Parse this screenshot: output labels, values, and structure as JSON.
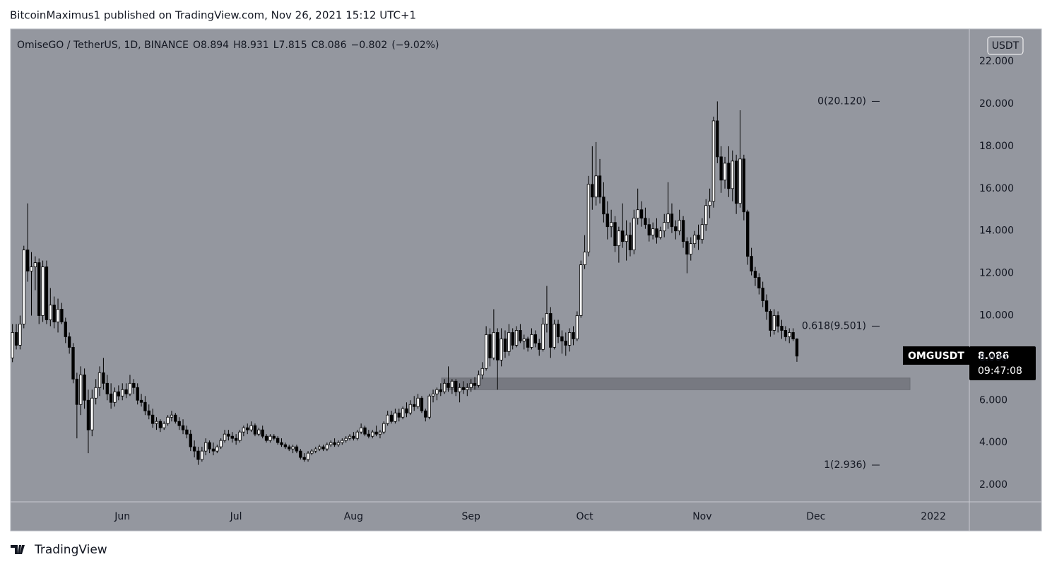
{
  "header": "BitcoinMaximus1 published on TradingView.com, Nov 26, 2021 15:12 UTC+1",
  "footer_brand": "TradingView",
  "chart_data": {
    "type": "candlestick",
    "symbol": "OmiseGO / TetherUS, 1D, BINANCE",
    "quote": [
      {
        "key": "O",
        "value": 8.894
      },
      {
        "key": "H",
        "value": 8.931
      },
      {
        "key": "L",
        "value": 7.815
      },
      {
        "key": "C",
        "value": 8.086
      }
    ],
    "change": {
      "value": -0.802,
      "label": "−0.802"
    },
    "change_pct": {
      "value": -9.02,
      "label": "(−9.02%)"
    },
    "ticker": "OMGUSDT",
    "countdown": "09:47:08",
    "currency": "USDT",
    "up_color": "#ffffff",
    "down_color": "#000000",
    "grid": false,
    "ylim": [
      1.2,
      23.54
    ],
    "yticks": [
      {
        "value": 2,
        "label": "2.000"
      },
      {
        "value": 4,
        "label": "4.000"
      },
      {
        "value": 6,
        "label": "6.000"
      },
      {
        "value": 8,
        "label": "8.000"
      },
      {
        "value": 10,
        "label": "10.000"
      },
      {
        "value": 12,
        "label": "12.000"
      },
      {
        "value": 14,
        "label": "14.000"
      },
      {
        "value": 16,
        "label": "16.000"
      },
      {
        "value": 18,
        "label": "18.000"
      },
      {
        "value": 20,
        "label": "20.000"
      },
      {
        "value": 22,
        "label": "22.000"
      }
    ],
    "fib_levels": [
      {
        "value": 20.12,
        "label": "0(20.120)"
      },
      {
        "value": 9.501,
        "label": "0.618(9.501)"
      },
      {
        "value": 2.936,
        "label": "1(2.936)"
      }
    ],
    "zone": [
      6.5,
      7.05
    ],
    "categories": [
      null,
      null,
      null,
      null,
      null,
      null,
      null,
      null,
      null,
      null,
      null,
      null,
      null,
      null,
      null,
      null,
      null,
      null,
      null,
      null,
      null,
      null,
      null,
      null,
      null,
      null,
      null,
      null,
      null,
      "Jun",
      null,
      null,
      null,
      null,
      null,
      null,
      null,
      null,
      null,
      null,
      null,
      null,
      null,
      null,
      null,
      null,
      null,
      null,
      null,
      null,
      null,
      null,
      null,
      null,
      null,
      null,
      null,
      null,
      null,
      "Jul",
      null,
      null,
      null,
      null,
      null,
      null,
      null,
      null,
      null,
      null,
      null,
      null,
      null,
      null,
      null,
      null,
      null,
      null,
      null,
      null,
      null,
      null,
      null,
      null,
      null,
      null,
      null,
      null,
      null,
      null,
      "Aug",
      null,
      null,
      null,
      null,
      null,
      null,
      null,
      null,
      null,
      null,
      null,
      null,
      null,
      null,
      null,
      null,
      null,
      null,
      null,
      null,
      null,
      null,
      null,
      null,
      null,
      null,
      null,
      null,
      null,
      null,
      "Sep",
      null,
      null,
      null,
      null,
      null,
      null,
      null,
      null,
      null,
      null,
      null,
      null,
      null,
      null,
      null,
      null,
      null,
      null,
      null,
      null,
      null,
      null,
      null,
      null,
      null,
      null,
      null,
      null,
      null,
      "Oct",
      null,
      null,
      null,
      null,
      null,
      null,
      null,
      null,
      null,
      null,
      null,
      null,
      null,
      null,
      null,
      null,
      null,
      null,
      null,
      null,
      null,
      null,
      null,
      null,
      null,
      null,
      null,
      null,
      null,
      null,
      "Nov",
      null,
      null,
      null,
      null,
      null,
      null,
      null,
      null,
      null,
      null,
      null,
      null,
      null,
      null,
      null,
      null,
      null,
      null,
      null,
      null,
      null,
      null,
      null,
      null,
      null,
      null,
      null,
      null,
      null,
      "Dec",
      null,
      null,
      null,
      null,
      null,
      null,
      null,
      null,
      null,
      null,
      null,
      null,
      null,
      null,
      null,
      null,
      null,
      null,
      null,
      null,
      null,
      null,
      null,
      null,
      null,
      null,
      null,
      null,
      null,
      null,
      "2022",
      null,
      null,
      null,
      null,
      null,
      null,
      null,
      null,
      null
    ],
    "open": [
      8.0,
      9.2,
      8.6,
      9.6,
      13.1,
      12.1,
      12.3,
      12.5,
      10.0,
      12.3,
      9.8,
      10.5,
      9.7,
      10.3,
      9.7,
      9.0,
      8.5,
      7.0,
      5.8,
      7.2,
      6.0,
      4.6,
      6.1,
      6.6,
      7.3,
      6.8,
      6.3,
      5.9,
      6.4,
      6.2,
      6.5,
      6.3,
      6.8,
      6.6,
      6.0,
      5.9,
      5.5,
      5.3,
      4.9,
      5.0,
      4.7,
      4.9,
      5.2,
      5.3,
      5.0,
      4.8,
      4.6,
      4.4,
      3.8,
      3.6,
      3.2,
      3.6,
      4.0,
      3.7,
      3.6,
      3.8,
      4.1,
      4.4,
      4.3,
      4.2,
      4.1,
      4.5,
      4.7,
      4.6,
      4.8,
      4.4,
      4.6,
      4.3,
      4.1,
      4.3,
      4.2,
      4.0,
      3.9,
      3.8,
      3.7,
      3.8,
      3.6,
      3.3,
      3.2,
      3.5,
      3.6,
      3.7,
      3.8,
      3.7,
      3.9,
      4.0,
      3.9,
      4.0,
      4.1,
      4.2,
      4.3,
      4.2,
      4.5,
      4.7,
      4.4,
      4.3,
      4.5,
      4.4,
      4.5,
      4.9,
      5.3,
      5.0,
      5.4,
      5.2,
      5.6,
      5.4,
      5.8,
      5.7,
      6.1,
      5.5,
      5.2,
      6.2,
      6.3,
      6.5,
      6.4,
      6.8,
      6.6,
      6.9,
      6.4,
      6.6,
      6.5,
      6.6,
      6.8,
      6.7,
      7.2,
      7.5,
      9.1,
      8.0,
      9.2,
      7.9,
      8.9,
      8.3,
      9.2,
      8.6,
      9.3,
      8.8,
      8.9,
      8.5,
      9.1,
      8.7,
      8.4,
      9.6,
      10.1,
      8.5,
      9.6,
      9.0,
      8.8,
      8.6,
      9.2,
      8.9,
      10.0,
      12.4,
      13.0,
      16.2,
      15.6,
      16.6,
      15.6,
      14.8,
      14.2,
      14.4,
      13.3,
      14.0,
      13.5,
      13.8,
      13.1,
      14.6,
      15.0,
      14.6,
      14.3,
      13.8,
      14.1,
      13.7,
      14.0,
      14.4,
      14.8,
      14.2,
      14.0,
      14.5,
      13.5,
      12.9,
      13.4,
      13.8,
      13.6,
      14.3,
      15.2,
      15.4,
      19.2,
      17.5,
      16.4,
      17.2,
      16.0,
      17.3,
      15.3,
      17.4,
      14.9,
      12.8,
      12.1,
      11.8,
      11.3,
      10.7,
      10.2,
      9.3,
      10.0,
      9.5,
      9.3,
      9.0,
      9.2,
      8.894,
      null,
      null,
      null,
      null,
      null,
      null,
      null,
      null,
      null,
      null,
      null,
      null,
      null,
      null,
      null,
      null,
      null,
      null,
      null,
      null,
      null,
      null,
      null,
      null,
      null,
      null,
      null,
      null,
      null,
      null,
      null,
      null,
      null,
      null,
      null,
      null,
      null,
      null,
      null,
      null,
      null,
      null,
      null,
      null,
      null
    ],
    "high": [
      9.6,
      9.6,
      10.0,
      13.3,
      15.3,
      13.0,
      12.8,
      12.7,
      12.6,
      12.6,
      11.3,
      10.9,
      10.8,
      10.6,
      9.9,
      9.2,
      8.7,
      7.3,
      7.6,
      7.5,
      6.5,
      6.5,
      7.0,
      7.6,
      8.0,
      7.2,
      6.8,
      6.6,
      6.7,
      6.8,
      6.8,
      7.2,
      7.0,
      6.8,
      6.3,
      6.2,
      5.8,
      5.6,
      5.2,
      5.1,
      5.0,
      5.3,
      5.5,
      5.4,
      5.2,
      5.1,
      4.8,
      4.6,
      4.1,
      3.8,
      3.8,
      4.2,
      4.1,
      4.0,
      3.9,
      4.2,
      4.6,
      4.6,
      4.5,
      4.4,
      4.6,
      4.8,
      4.9,
      5.0,
      4.9,
      4.7,
      4.8,
      4.4,
      4.4,
      4.4,
      4.3,
      4.2,
      4.0,
      3.9,
      3.9,
      3.9,
      3.7,
      3.5,
      3.6,
      3.7,
      3.8,
      3.9,
      3.9,
      4.0,
      4.1,
      4.2,
      4.1,
      4.2,
      4.3,
      4.4,
      4.5,
      4.6,
      4.9,
      4.8,
      4.6,
      4.6,
      4.8,
      4.6,
      5.0,
      5.5,
      5.5,
      5.6,
      5.6,
      5.7,
      5.9,
      6.0,
      6.2,
      6.3,
      6.2,
      5.6,
      6.3,
      6.5,
      6.6,
      6.8,
      7.0,
      7.6,
      7.0,
      7.0,
      6.8,
      6.9,
      6.8,
      7.0,
      7.1,
      7.4,
      7.8,
      9.5,
      9.4,
      10.3,
      9.4,
      9.4,
      9.3,
      9.6,
      9.4,
      9.5,
      9.6,
      9.1,
      9.0,
      9.4,
      9.3,
      8.9,
      9.9,
      11.4,
      10.4,
      9.8,
      9.8,
      9.3,
      9.2,
      9.4,
      9.5,
      10.2,
      12.6,
      13.8,
      16.6,
      18.0,
      18.2,
      17.4,
      16.3,
      15.4,
      15.0,
      14.7,
      14.2,
      15.3,
      14.5,
      14.4,
      15.0,
      16.0,
      15.4,
      15.1,
      14.6,
      14.4,
      14.6,
      14.2,
      14.8,
      16.3,
      15.3,
      14.5,
      15.0,
      14.7,
      13.7,
      13.7,
      14.0,
      14.3,
      14.6,
      15.5,
      16.0,
      19.4,
      20.12,
      18.0,
      17.5,
      18.0,
      17.8,
      17.6,
      19.7,
      17.6,
      15.0,
      13.2,
      12.3,
      12.0,
      11.6,
      11.0,
      10.3,
      10.3,
      10.2,
      9.8,
      9.5,
      9.4,
      9.4,
      8.931,
      null,
      null,
      null,
      null,
      null,
      null,
      null,
      null,
      null,
      null,
      null,
      null,
      null,
      null,
      null,
      null,
      null,
      null,
      null,
      null,
      null,
      null,
      null,
      null,
      null,
      null,
      null,
      null,
      null,
      null,
      null,
      null,
      null,
      null,
      null,
      null,
      null,
      null,
      null,
      null,
      null,
      null,
      null,
      null,
      null
    ],
    "low": [
      7.8,
      8.4,
      8.4,
      9.4,
      11.6,
      10.0,
      11.2,
      9.6,
      9.7,
      9.6,
      9.5,
      9.4,
      9.2,
      9.6,
      8.7,
      8.2,
      6.8,
      4.2,
      5.3,
      5.6,
      3.5,
      4.3,
      5.8,
      6.2,
      6.5,
      6.0,
      5.6,
      5.7,
      6.0,
      6.0,
      6.1,
      6.2,
      6.3,
      5.8,
      5.7,
      5.3,
      5.1,
      4.7,
      4.6,
      4.5,
      4.6,
      4.8,
      5.0,
      4.9,
      4.6,
      4.4,
      4.2,
      3.6,
      3.3,
      2.95,
      3.1,
      3.4,
      3.5,
      3.4,
      3.5,
      3.7,
      4.0,
      4.1,
      4.0,
      3.9,
      4.0,
      4.3,
      4.4,
      4.5,
      4.3,
      4.3,
      4.2,
      4.0,
      4.0,
      4.1,
      3.9,
      3.8,
      3.7,
      3.6,
      3.5,
      3.5,
      3.2,
      3.1,
      3.1,
      3.4,
      3.5,
      3.6,
      3.6,
      3.6,
      3.8,
      3.8,
      3.8,
      3.9,
      4.0,
      4.1,
      4.1,
      4.1,
      4.4,
      4.3,
      4.2,
      4.2,
      4.3,
      4.2,
      4.4,
      4.8,
      4.9,
      4.9,
      5.0,
      5.1,
      5.2,
      5.3,
      5.5,
      5.6,
      5.4,
      5.0,
      5.1,
      5.9,
      6.0,
      6.2,
      6.3,
      6.4,
      6.3,
      6.2,
      5.9,
      6.3,
      6.2,
      6.4,
      6.5,
      6.6,
      7.0,
      7.4,
      7.6,
      7.9,
      6.5,
      7.6,
      8.0,
      8.1,
      8.4,
      8.5,
      8.7,
      8.4,
      8.3,
      8.4,
      8.5,
      8.1,
      8.3,
      9.2,
      8.0,
      8.4,
      8.7,
      8.2,
      8.1,
      8.3,
      8.6,
      8.8,
      9.9,
      12.2,
      12.8,
      15.0,
      15.2,
      15.3,
      14.4,
      13.6,
      13.7,
      13.0,
      12.5,
      13.2,
      12.6,
      12.8,
      12.9,
      14.3,
      14.2,
      14.1,
      13.5,
      13.6,
      13.4,
      13.6,
      13.7,
      14.1,
      13.9,
      13.6,
      13.8,
      13.2,
      12.0,
      12.6,
      13.2,
      13.1,
      13.4,
      14.0,
      14.6,
      15.1,
      17.2,
      15.8,
      16.0,
      15.6,
      15.4,
      14.8,
      15.1,
      14.5,
      12.4,
      11.9,
      11.4,
      11.0,
      10.4,
      9.8,
      9.0,
      9.1,
      9.2,
      8.9,
      8.8,
      8.7,
      8.8,
      7.815,
      null,
      null,
      null,
      null,
      null,
      null,
      null,
      null,
      null,
      null,
      null,
      null,
      null,
      null,
      null,
      null,
      null,
      null,
      null,
      null,
      null,
      null,
      null,
      null,
      null,
      null,
      null,
      null,
      null,
      null,
      null,
      null,
      null,
      null,
      null,
      null,
      null,
      null,
      null,
      null,
      null,
      null,
      null,
      null,
      null
    ],
    "close": [
      9.2,
      8.6,
      9.6,
      13.1,
      12.1,
      12.3,
      12.5,
      10.0,
      12.3,
      9.8,
      10.5,
      9.7,
      10.3,
      9.7,
      9.0,
      8.5,
      7.0,
      5.8,
      7.2,
      6.0,
      4.6,
      6.1,
      6.6,
      7.3,
      6.8,
      6.3,
      5.9,
      6.4,
      6.2,
      6.5,
      6.3,
      6.8,
      6.6,
      6.0,
      5.9,
      5.5,
      5.3,
      4.9,
      5.0,
      4.7,
      4.9,
      5.2,
      5.3,
      5.0,
      4.8,
      4.6,
      4.4,
      3.8,
      3.6,
      3.2,
      3.6,
      4.0,
      3.7,
      3.6,
      3.8,
      4.1,
      4.4,
      4.3,
      4.2,
      4.1,
      4.5,
      4.7,
      4.6,
      4.8,
      4.4,
      4.6,
      4.3,
      4.1,
      4.3,
      4.2,
      4.0,
      3.9,
      3.8,
      3.7,
      3.8,
      3.6,
      3.3,
      3.2,
      3.5,
      3.6,
      3.7,
      3.8,
      3.7,
      3.9,
      4.0,
      3.9,
      4.0,
      4.1,
      4.2,
      4.3,
      4.2,
      4.5,
      4.7,
      4.4,
      4.3,
      4.5,
      4.4,
      4.5,
      4.9,
      5.3,
      5.0,
      5.4,
      5.2,
      5.6,
      5.4,
      5.8,
      5.7,
      6.1,
      5.5,
      5.2,
      6.2,
      6.3,
      6.5,
      6.4,
      6.8,
      6.6,
      6.9,
      6.4,
      6.6,
      6.5,
      6.6,
      6.8,
      6.7,
      7.2,
      7.5,
      9.1,
      8.0,
      9.2,
      7.9,
      8.9,
      8.3,
      9.2,
      8.6,
      9.3,
      8.8,
      8.9,
      8.5,
      9.1,
      8.7,
      8.4,
      9.6,
      10.1,
      8.5,
      9.6,
      9.0,
      8.8,
      8.6,
      9.2,
      8.9,
      10.0,
      12.4,
      13.0,
      16.2,
      15.6,
      16.6,
      15.6,
      14.8,
      14.2,
      14.4,
      13.3,
      14.0,
      13.5,
      13.8,
      13.1,
      14.6,
      15.0,
      14.6,
      14.3,
      13.8,
      14.1,
      13.7,
      14.0,
      14.4,
      14.8,
      14.2,
      14.0,
      14.5,
      13.5,
      12.9,
      13.4,
      13.8,
      13.6,
      14.3,
      15.2,
      15.4,
      19.2,
      17.5,
      16.4,
      17.2,
      16.0,
      17.3,
      15.3,
      17.4,
      14.9,
      12.8,
      12.1,
      11.8,
      11.3,
      10.7,
      10.2,
      9.3,
      10.0,
      9.5,
      9.3,
      9.0,
      9.2,
      8.894,
      8.086,
      null,
      null,
      null,
      null,
      null,
      null,
      null,
      null,
      null,
      null,
      null,
      null,
      null,
      null,
      null,
      null,
      null,
      null,
      null,
      null,
      null,
      null,
      null,
      null,
      null,
      null,
      null,
      null,
      null,
      null,
      null,
      null,
      null,
      null,
      null,
      null,
      null,
      null,
      null,
      null,
      null,
      null,
      null,
      null,
      null
    ]
  }
}
